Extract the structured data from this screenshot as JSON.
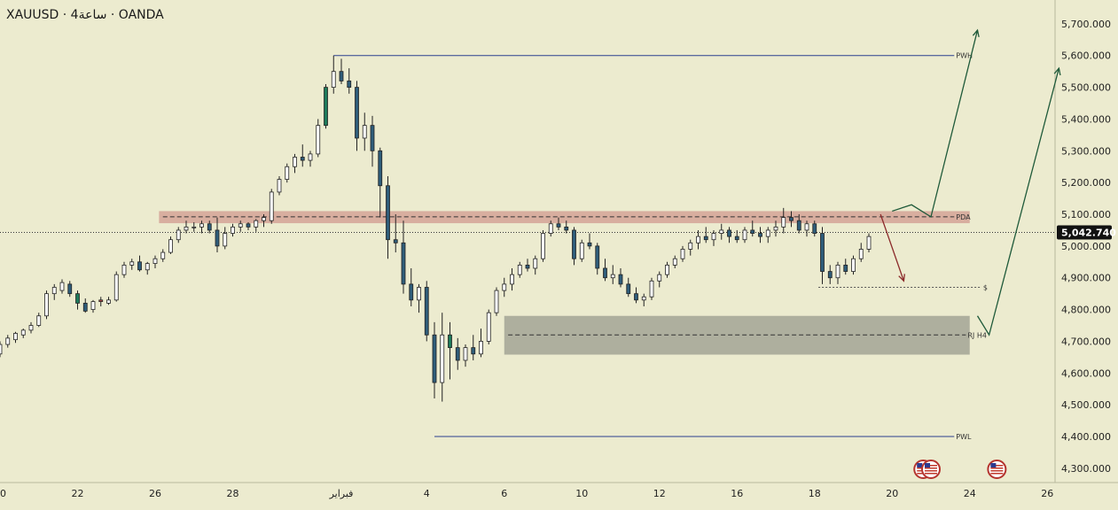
{
  "header": {
    "title": "XAUUSD · 4ساعة · OANDA"
  },
  "colors": {
    "background": "#ecebcf",
    "candle_up": "#ffffff",
    "candle_down": "#2f5d7a",
    "candle_up_highlight": "#1e7a5a",
    "candle_down_highlight": "#c44b4b",
    "level_line": "#2b3f8f",
    "pda_zone": "#d29a8f",
    "demand_zone": "#a3a595",
    "arrow_up": "#1f5a3a",
    "arrow_down": "#8b2a2a",
    "price_badge": "#111111"
  },
  "chart_data": {
    "type": "candlestick",
    "symbol": "XAUUSD",
    "timeframe": "4ساعة",
    "broker": "OANDA",
    "y_axis": {
      "ticks": [
        "5,700.000",
        "5,600.000",
        "5,500.000",
        "5,400.000",
        "5,300.000",
        "5,200.000",
        "5,100.000",
        "5,000.000",
        "4,900.000",
        "4,800.000",
        "4,700.000",
        "4,600.000",
        "4,500.000",
        "4,400.000",
        "4,300.000"
      ],
      "tick_values": [
        5700,
        5600,
        5500,
        5400,
        5300,
        5200,
        5100,
        5000,
        4900,
        4800,
        4700,
        4600,
        4500,
        4400,
        4300
      ],
      "range": [
        4255,
        5775
      ]
    },
    "x_axis": {
      "labels": [
        "20",
        "22",
        "26",
        "28",
        "فبراير",
        "4",
        "6",
        "10",
        "12",
        "16",
        "18",
        "20",
        "24",
        "26"
      ],
      "label_index": [
        0,
        20,
        40,
        60,
        88,
        110,
        130,
        150,
        170,
        190,
        210,
        230,
        250,
        270
      ],
      "index_range": [
        0,
        272
      ]
    },
    "current_price": {
      "label": "5,042.740",
      "value": 5042.74
    },
    "candles": [
      [
        0,
        4660,
        4700,
        4650,
        4690
      ],
      [
        2,
        4690,
        4720,
        4680,
        4710
      ],
      [
        4,
        4705,
        4730,
        4695,
        4725
      ],
      [
        6,
        4720,
        4740,
        4710,
        4735
      ],
      [
        8,
        4735,
        4760,
        4725,
        4750
      ],
      [
        10,
        4750,
        4790,
        4745,
        4780
      ],
      [
        12,
        4780,
        4860,
        4770,
        4850
      ],
      [
        14,
        4850,
        4880,
        4830,
        4870
      ],
      [
        16,
        4860,
        4895,
        4850,
        4885
      ],
      [
        18,
        4880,
        4890,
        4840,
        4850
      ],
      [
        20,
        4850,
        4860,
        4800,
        4820
      ],
      [
        22,
        4820,
        4835,
        4790,
        4795
      ],
      [
        24,
        4800,
        4830,
        4790,
        4825
      ],
      [
        26,
        4825,
        4840,
        4810,
        4830
      ],
      [
        28,
        4820,
        4840,
        4815,
        4830
      ],
      [
        30,
        4830,
        4920,
        4825,
        4910
      ],
      [
        32,
        4910,
        4950,
        4900,
        4940
      ],
      [
        34,
        4940,
        4960,
        4925,
        4950
      ],
      [
        36,
        4950,
        4970,
        4920,
        4925
      ],
      [
        38,
        4925,
        4950,
        4910,
        4945
      ],
      [
        40,
        4945,
        4970,
        4930,
        4960
      ],
      [
        42,
        4960,
        4990,
        4950,
        4980
      ],
      [
        44,
        4980,
        5030,
        4975,
        5020
      ],
      [
        46,
        5020,
        5060,
        5010,
        5050
      ],
      [
        48,
        5050,
        5080,
        5040,
        5060
      ],
      [
        50,
        5060,
        5075,
        5045,
        5060
      ],
      [
        52,
        5060,
        5080,
        5040,
        5070
      ],
      [
        54,
        5070,
        5080,
        5040,
        5050
      ],
      [
        56,
        5050,
        5090,
        4980,
        5000
      ],
      [
        58,
        5000,
        5060,
        4990,
        5040
      ],
      [
        60,
        5040,
        5070,
        5030,
        5060
      ],
      [
        62,
        5060,
        5080,
        5045,
        5070
      ],
      [
        64,
        5070,
        5075,
        5050,
        5060
      ],
      [
        66,
        5060,
        5085,
        5045,
        5080
      ],
      [
        68,
        5080,
        5100,
        5060,
        5090
      ],
      [
        70,
        5080,
        5180,
        5070,
        5170
      ],
      [
        72,
        5170,
        5220,
        5160,
        5210
      ],
      [
        74,
        5210,
        5260,
        5200,
        5250
      ],
      [
        76,
        5250,
        5290,
        5230,
        5280
      ],
      [
        78,
        5280,
        5320,
        5250,
        5270
      ],
      [
        80,
        5270,
        5300,
        5250,
        5290
      ],
      [
        82,
        5290,
        5400,
        5280,
        5380
      ],
      [
        84,
        5380,
        5510,
        5370,
        5500
      ],
      [
        86,
        5500,
        5600,
        5480,
        5550
      ],
      [
        88,
        5550,
        5590,
        5510,
        5520
      ],
      [
        90,
        5520,
        5560,
        5480,
        5500
      ],
      [
        92,
        5500,
        5520,
        5300,
        5340
      ],
      [
        94,
        5340,
        5420,
        5300,
        5380
      ],
      [
        96,
        5380,
        5410,
        5250,
        5300
      ],
      [
        98,
        5300,
        5310,
        5090,
        5190
      ],
      [
        100,
        5190,
        5220,
        4960,
        5020
      ],
      [
        102,
        5020,
        5100,
        4980,
        5010
      ],
      [
        104,
        5010,
        5080,
        4850,
        4880
      ],
      [
        106,
        4880,
        4930,
        4810,
        4830
      ],
      [
        108,
        4830,
        4880,
        4790,
        4870
      ],
      [
        110,
        4870,
        4890,
        4700,
        4720
      ],
      [
        112,
        4720,
        4760,
        4520,
        4570
      ],
      [
        114,
        4570,
        4790,
        4510,
        4720
      ],
      [
        116,
        4720,
        4760,
        4580,
        4680
      ],
      [
        118,
        4680,
        4710,
        4610,
        4640
      ],
      [
        120,
        4640,
        4690,
        4620,
        4680
      ],
      [
        122,
        4680,
        4720,
        4640,
        4660
      ],
      [
        124,
        4660,
        4740,
        4650,
        4700
      ],
      [
        126,
        4700,
        4800,
        4690,
        4790
      ],
      [
        128,
        4790,
        4870,
        4780,
        4860
      ],
      [
        130,
        4860,
        4900,
        4840,
        4880
      ],
      [
        132,
        4880,
        4930,
        4860,
        4910
      ],
      [
        134,
        4910,
        4950,
        4900,
        4940
      ],
      [
        136,
        4940,
        4960,
        4920,
        4930
      ],
      [
        138,
        4930,
        4970,
        4910,
        4960
      ],
      [
        140,
        4960,
        5050,
        4950,
        5040
      ],
      [
        142,
        5040,
        5080,
        5030,
        5070
      ],
      [
        144,
        5070,
        5090,
        5050,
        5060
      ],
      [
        146,
        5060,
        5080,
        5040,
        5050
      ],
      [
        148,
        5050,
        5060,
        4940,
        4960
      ],
      [
        150,
        4960,
        5020,
        4950,
        5010
      ],
      [
        152,
        5010,
        5040,
        4990,
        5000
      ],
      [
        154,
        5000,
        5010,
        4910,
        4930
      ],
      [
        156,
        4930,
        4960,
        4890,
        4900
      ],
      [
        158,
        4900,
        4940,
        4880,
        4910
      ],
      [
        160,
        4910,
        4930,
        4870,
        4880
      ],
      [
        162,
        4880,
        4900,
        4840,
        4850
      ],
      [
        164,
        4850,
        4870,
        4820,
        4830
      ],
      [
        166,
        4830,
        4850,
        4810,
        4840
      ],
      [
        168,
        4840,
        4900,
        4830,
        4890
      ],
      [
        170,
        4890,
        4920,
        4870,
        4910
      ],
      [
        172,
        4910,
        4950,
        4900,
        4940
      ],
      [
        174,
        4940,
        4970,
        4930,
        4960
      ],
      [
        176,
        4960,
        5000,
        4950,
        4990
      ],
      [
        178,
        4990,
        5020,
        4970,
        5010
      ],
      [
        180,
        5010,
        5050,
        4990,
        5030
      ],
      [
        182,
        5030,
        5060,
        5010,
        5020
      ],
      [
        184,
        5020,
        5050,
        5000,
        5040
      ],
      [
        186,
        5040,
        5070,
        5020,
        5050
      ],
      [
        188,
        5050,
        5060,
        5010,
        5030
      ],
      [
        190,
        5030,
        5050,
        5010,
        5020
      ],
      [
        192,
        5020,
        5060,
        5010,
        5050
      ],
      [
        194,
        5050,
        5080,
        5030,
        5040
      ],
      [
        196,
        5040,
        5060,
        5010,
        5030
      ],
      [
        198,
        5030,
        5060,
        5010,
        5050
      ],
      [
        200,
        5050,
        5080,
        5030,
        5060
      ],
      [
        202,
        5060,
        5120,
        5040,
        5090
      ],
      [
        204,
        5090,
        5110,
        5060,
        5080
      ],
      [
        206,
        5080,
        5100,
        5040,
        5050
      ],
      [
        208,
        5050,
        5080,
        5030,
        5070
      ],
      [
        210,
        5070,
        5080,
        5030,
        5040
      ],
      [
        212,
        5040,
        5060,
        4880,
        4920
      ],
      [
        214,
        4920,
        4940,
        4880,
        4900
      ],
      [
        216,
        4900,
        4950,
        4880,
        4940
      ],
      [
        218,
        4940,
        4960,
        4910,
        4920
      ],
      [
        220,
        4920,
        4970,
        4910,
        4960
      ],
      [
        222,
        4960,
        5010,
        4950,
        4990
      ],
      [
        224,
        4990,
        5040,
        4980,
        5030
      ]
    ],
    "levels": [
      {
        "label": "PWH",
        "value": 5600
      },
      {
        "label": "PDA",
        "value": 5092
      },
      {
        "label": "$",
        "value": 4870
      },
      {
        "label": "RJ H4",
        "value": 4720
      },
      {
        "label": "PWL",
        "value": 4400
      }
    ],
    "zones": [
      {
        "name": "PDA",
        "from": 5072,
        "to": 5110
      },
      {
        "name": "RJ H4",
        "from": 4658,
        "to": 4780
      }
    ],
    "scenarios": [
      {
        "name": "bullish-1",
        "direction": "up",
        "path": [
          [
            230,
            5110
          ],
          [
            235,
            5130
          ],
          [
            240,
            5092
          ],
          [
            252,
            5680
          ]
        ]
      },
      {
        "name": "bullish-2",
        "direction": "up",
        "path": [
          [
            252,
            4780
          ],
          [
            255,
            4720
          ],
          [
            273,
            5560
          ]
        ]
      },
      {
        "name": "bearish",
        "direction": "down",
        "path": [
          [
            227,
            5100
          ],
          [
            233,
            4890
          ]
        ]
      }
    ],
    "events": {
      "icon": "us-flag-icon",
      "indices": [
        238,
        240,
        257
      ]
    }
  }
}
